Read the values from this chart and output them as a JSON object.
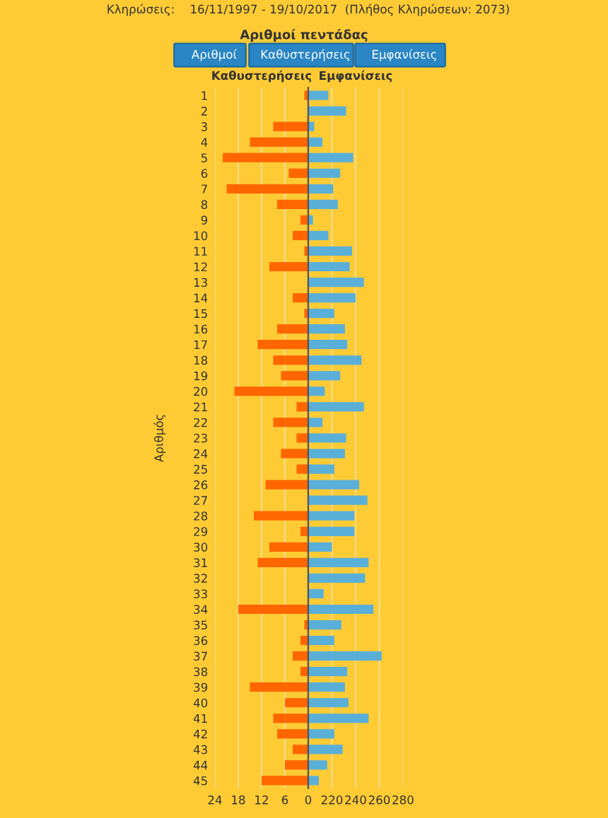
{
  "chart_data": [
    {
      "type": "bar",
      "orientation": "horizontal",
      "title": "Αριθμοί πεντάδας",
      "xlabel": "Καθυστερήσεις",
      "ylabel": "Αριθμός",
      "annotations": [
        "Κληρώσεις:    16/11/1997 - 19/10/2017  (Πλήθος Κληρώσεων: 2073)",
        "Αριθμοί",
        "Καθυστερήσεις",
        "Εμφανίσεις"
      ],
      "categories": [
        "1",
        "2",
        "3",
        "4",
        "5",
        "6",
        "7",
        "8",
        "9",
        "10",
        "11",
        "12",
        "13",
        "14",
        "15",
        "16",
        "17",
        "18",
        "19",
        "20",
        "21",
        "22",
        "23",
        "24",
        "25",
        "26",
        "27",
        "28",
        "29",
        "30",
        "31",
        "32",
        "33",
        "34",
        "35",
        "36",
        "37",
        "38",
        "39",
        "40",
        "41",
        "42",
        "43",
        "44",
        "45"
      ],
      "series": [
        {
          "color": "#ff6600",
          "values": [
            1,
            null,
            9,
            15,
            22,
            5,
            21,
            8,
            2,
            4,
            1,
            10,
            null,
            4,
            1,
            8,
            13,
            9,
            7,
            19,
            3,
            9,
            3,
            7,
            3,
            11,
            null,
            14,
            2,
            10,
            13,
            null,
            null,
            18,
            1,
            2,
            4,
            2,
            15,
            6,
            9,
            8,
            4,
            6,
            12
          ]
        }
      ],
      "xlim": [
        24,
        0
      ],
      "xticks": [
        24,
        18,
        12,
        6,
        0
      ],
      "grid": "x"
    },
    {
      "type": "bar",
      "orientation": "horizontal",
      "xlabel": "Εμφανίσεις",
      "categories": [
        "1",
        "2",
        "3",
        "4",
        "5",
        "6",
        "7",
        "8",
        "9",
        "10",
        "11",
        "12",
        "13",
        "14",
        "15",
        "16",
        "17",
        "18",
        "19",
        "20",
        "21",
        "22",
        "23",
        "24",
        "25",
        "26",
        "27",
        "28",
        "29",
        "30",
        "31",
        "32",
        "33",
        "34",
        "35",
        "36",
        "37",
        "38",
        "39",
        "40",
        "41",
        "42",
        "43",
        "44",
        "45"
      ],
      "series": [
        {
          "color": "#5aafd8",
          "values": [
            217,
            232,
            205,
            212,
            238,
            227,
            221,
            225,
            204,
            217,
            237,
            235,
            247,
            240,
            222,
            231,
            233,
            245,
            227,
            214,
            247,
            212,
            232,
            231,
            222,
            243,
            250,
            239,
            239,
            220,
            251,
            248,
            213,
            255,
            228,
            222,
            262,
            233,
            231,
            234,
            251,
            222,
            229,
            216,
            209
          ]
        }
      ],
      "xlim": [
        200,
        280
      ],
      "xticks": [
        {
          "value": 200,
          "label": null
        },
        220,
        240,
        260,
        280
      ],
      "grid": "x",
      "tick_labels": "x"
    }
  ]
}
